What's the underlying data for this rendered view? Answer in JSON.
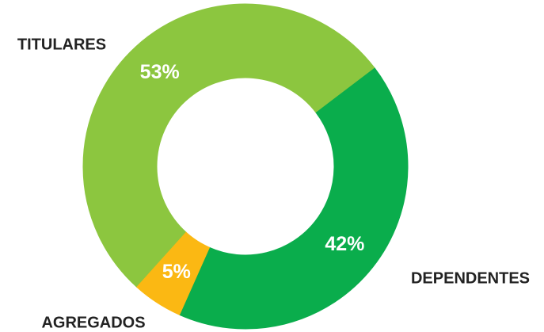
{
  "chart_data": {
    "type": "donut",
    "categories": [
      "TITULARES",
      "DEPENDENTES",
      "AGREGADOS"
    ],
    "values": [
      53,
      42,
      5
    ],
    "value_labels": [
      "53%",
      "42%",
      "5%"
    ],
    "colors": [
      "#8cc63f",
      "#0aad4c",
      "#fbb813"
    ]
  }
}
